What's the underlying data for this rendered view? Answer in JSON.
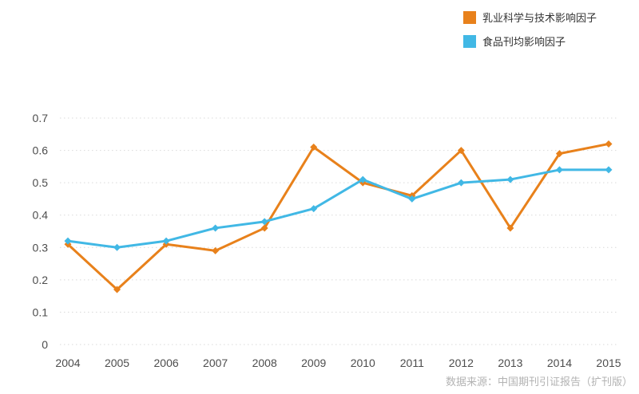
{
  "legend": {
    "items": [
      {
        "label": "乳业科学与技术影响因子",
        "color": "#e8811b"
      },
      {
        "label": "食品刊均影响因子",
        "color": "#41b8e5"
      }
    ]
  },
  "source_note": "数据来源：中国期刊引证报告（扩刊版）",
  "chart_data": {
    "type": "line",
    "title": "",
    "xlabel": "",
    "ylabel": "",
    "categories": [
      "2004",
      "2005",
      "2006",
      "2007",
      "2008",
      "2009",
      "2010",
      "2011",
      "2012",
      "2013",
      "2014",
      "2015"
    ],
    "series": [
      {
        "name": "乳业科学与技术影响因子",
        "color": "#e8811b",
        "values": [
          0.31,
          0.17,
          0.31,
          0.29,
          0.36,
          0.61,
          0.5,
          0.46,
          0.6,
          0.36,
          0.59,
          0.62
        ]
      },
      {
        "name": "食品刊均影响因子",
        "color": "#41b8e5",
        "values": [
          0.32,
          0.3,
          0.32,
          0.36,
          0.38,
          0.42,
          0.51,
          0.45,
          0.5,
          0.51,
          0.54,
          0.54
        ]
      }
    ],
    "ylim": [
      0,
      0.7
    ],
    "ytick_step": 0.1,
    "grid": "horizontal-dotted",
    "legend_position": "top-right"
  },
  "style": {
    "grid_color": "#d9d9d9",
    "axis_text_color": "#4d4d4d",
    "source_text_color": "#b3b3b3",
    "line_width": 3
  }
}
